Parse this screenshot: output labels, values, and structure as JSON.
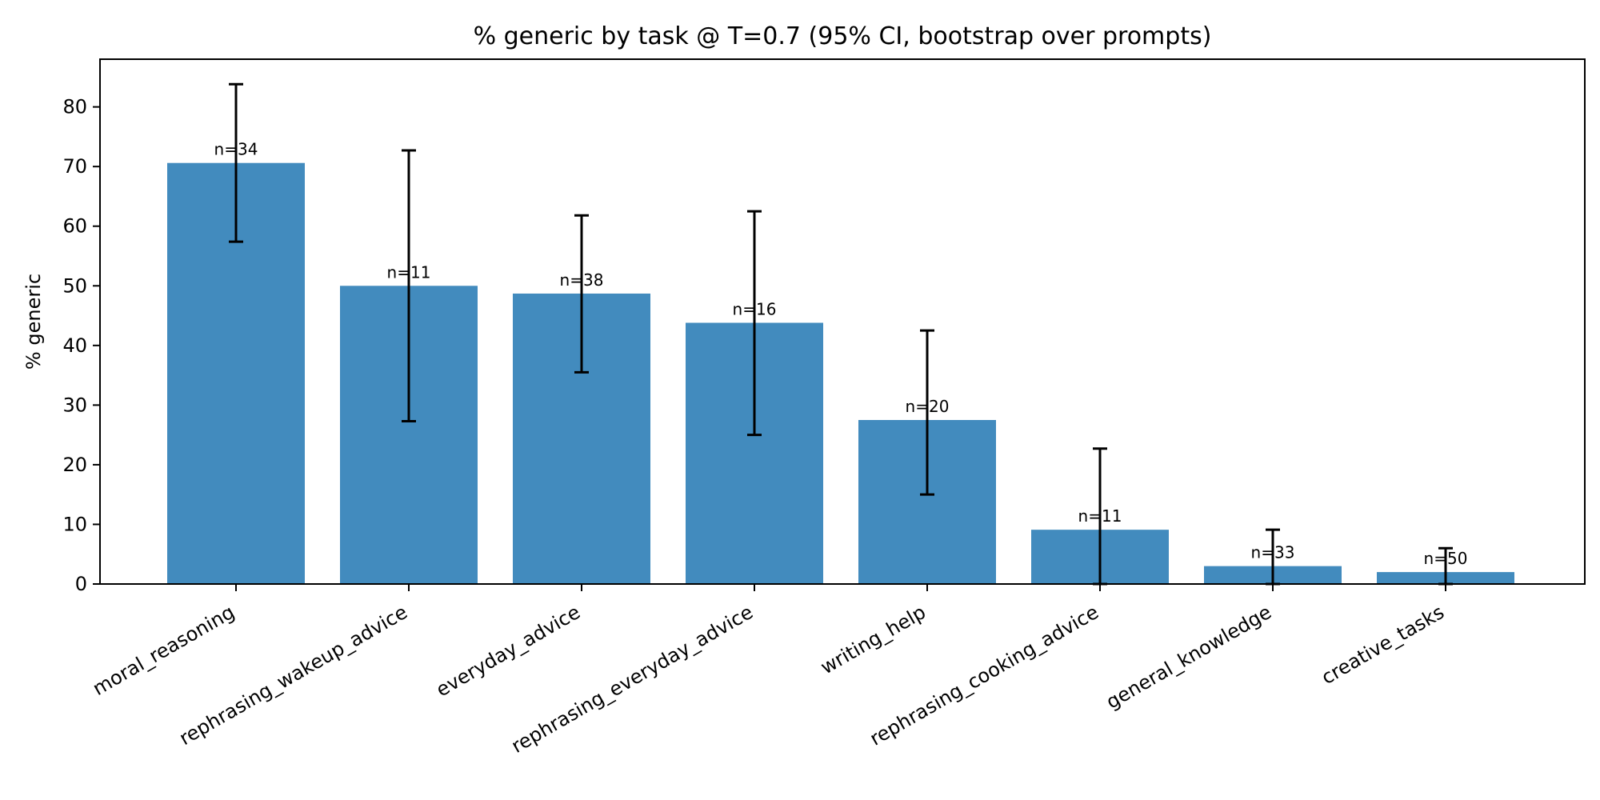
{
  "chart_data": {
    "type": "bar",
    "title": "% generic by task @ T=0.7 (95% CI, bootstrap over prompts)",
    "xlabel": "",
    "ylabel": "% generic",
    "ylim": [
      0,
      88
    ],
    "yticks": [
      0,
      10,
      20,
      30,
      40,
      50,
      60,
      70,
      80
    ],
    "grid": false,
    "legend": "none",
    "bar_color": "#428bbe",
    "error_color": "#000000",
    "categories": [
      "moral_reasoning",
      "rephrasing_wakeup_advice",
      "everyday_advice",
      "rephrasing_everyday_advice",
      "writing_help",
      "rephrasing_cooking_advice",
      "general_knowledge",
      "creative_tasks"
    ],
    "values": [
      70.6,
      50.0,
      48.7,
      43.8,
      27.5,
      9.1,
      3.0,
      2.0
    ],
    "ci_low": [
      57.4,
      27.3,
      35.5,
      25.0,
      15.0,
      0.0,
      0.0,
      0.0
    ],
    "ci_high": [
      83.8,
      72.7,
      61.8,
      62.5,
      42.5,
      22.7,
      9.1,
      6.0
    ],
    "n_labels": [
      "n=34",
      "n=11",
      "n=38",
      "n=16",
      "n=20",
      "n=11",
      "n=33",
      "n=50"
    ]
  }
}
